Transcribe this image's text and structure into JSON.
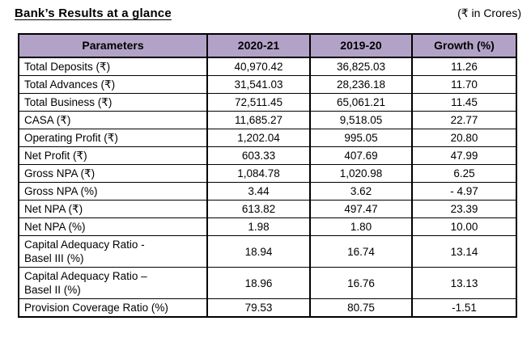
{
  "page": {
    "title": "Bank’s Results at a glance",
    "unit_note": "(₹ in Crores)"
  },
  "table": {
    "header_bg": "#B3A2C7",
    "border_color": "#000000",
    "headers": [
      "Parameters",
      "2020-21",
      "2019-20",
      "Growth (%)"
    ],
    "rows": [
      {
        "parameter": "Total Deposits (₹)",
        "fy2020_21": "40,970.42",
        "fy2019_20": "36,825.03",
        "growth": "11.26"
      },
      {
        "parameter": "Total Advances (₹)",
        "fy2020_21": "31,541.03",
        "fy2019_20": "28,236.18",
        "growth": "11.70"
      },
      {
        "parameter": "Total Business (₹)",
        "fy2020_21": "72,511.45",
        "fy2019_20": "65,061.21",
        "growth": "11.45"
      },
      {
        "parameter": "CASA (₹)",
        "fy2020_21": "11,685.27",
        "fy2019_20": "9,518.05",
        "growth": "22.77"
      },
      {
        "parameter": "Operating Profit (₹)",
        "fy2020_21": "1,202.04",
        "fy2019_20": "995.05",
        "growth": "20.80"
      },
      {
        "parameter": "Net Profit (₹)",
        "fy2020_21": "603.33",
        "fy2019_20": "407.69",
        "growth": "47.99"
      },
      {
        "parameter": "Gross NPA (₹)",
        "fy2020_21": "1,084.78",
        "fy2019_20": "1,020.98",
        "growth": "6.25"
      },
      {
        "parameter": "Gross NPA (%)",
        "fy2020_21": "3.44",
        "fy2019_20": "3.62",
        "growth": "- 4.97"
      },
      {
        "parameter": "Net NPA (₹)",
        "fy2020_21": "613.82",
        "fy2019_20": "497.47",
        "growth": "23.39"
      },
      {
        "parameter": "Net NPA (%)",
        "fy2020_21": "1.98",
        "fy2019_20": "1.80",
        "growth": "10.00"
      },
      {
        "parameter": "Capital Adequacy Ratio -\nBasel III (%)",
        "fy2020_21": "18.94",
        "fy2019_20": "16.74",
        "growth": "13.14"
      },
      {
        "parameter": "Capital Adequacy Ratio –\nBasel II (%)",
        "fy2020_21": "18.96",
        "fy2019_20": "16.76",
        "growth": "13.13"
      },
      {
        "parameter": "Provision Coverage Ratio (%)",
        "fy2020_21": "79.53",
        "fy2019_20": "80.75",
        "growth": "-1.51"
      }
    ]
  }
}
